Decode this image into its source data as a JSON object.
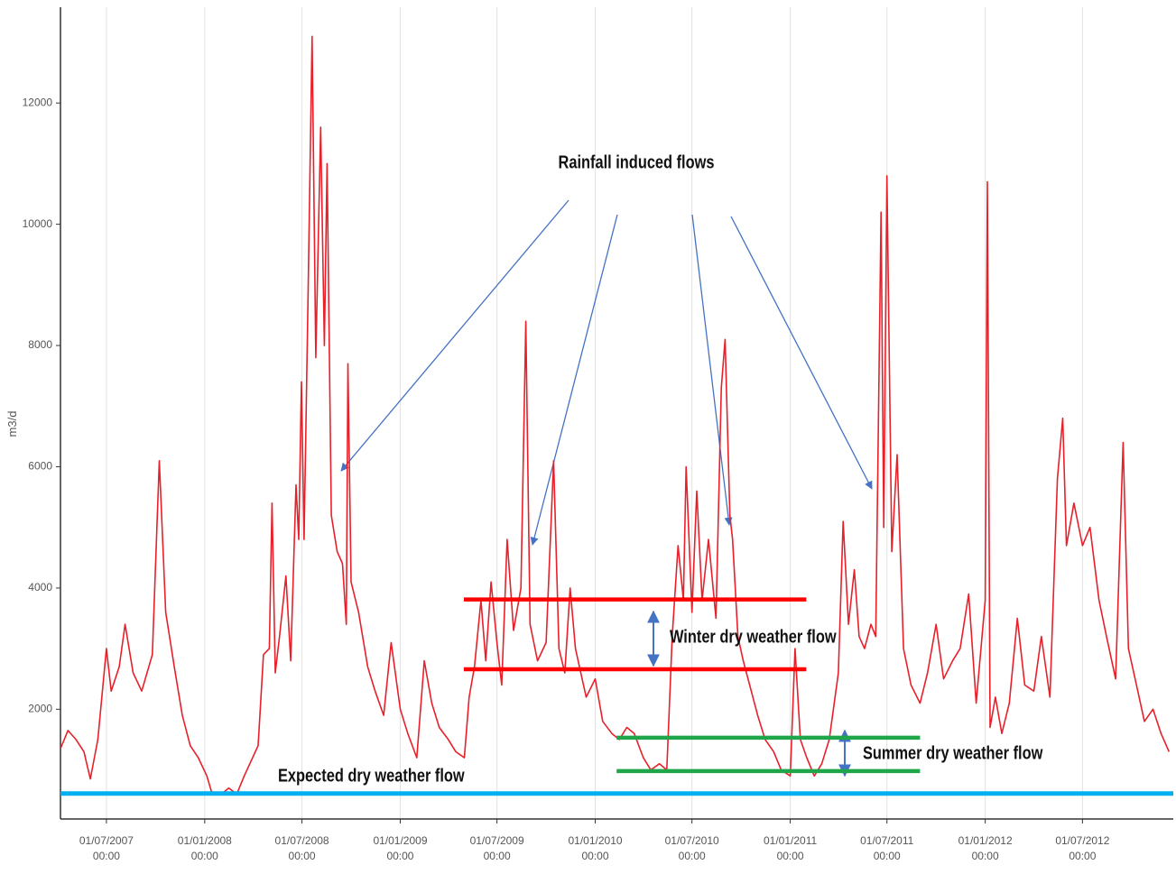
{
  "chart_data": {
    "type": "line",
    "ylabel": "m3/d",
    "annotations": [
      "Rainfall induced flows",
      "Winter dry weather flow",
      "Summer dry weather flow",
      "Expected dry weather flow"
    ],
    "xlim": [
      "06/04/2007",
      "18/12/2012"
    ],
    "ylim": [
      190,
      13580
    ],
    "yticks": [
      2000,
      4000,
      6000,
      8000,
      10000,
      12000
    ],
    "xticks": [
      "01/07/2007 00:00",
      "01/01/2008 00:00",
      "01/07/2008 00:00",
      "01/01/2009 00:00",
      "01/07/2009 00:00",
      "01/01/2010 00:00",
      "01/07/2010 00:00",
      "01/01/2011 00:00",
      "01/07/2011 00:00",
      "01/01/2012 00:00",
      "01/07/2012 00:00"
    ],
    "grid": true,
    "x": [
      "06/04/2007",
      "20/04/2007",
      "05/05/2007",
      "20/05/2007",
      "01/06/2007",
      "15/06/2007",
      "01/07/2007",
      "10/07/2007",
      "25/07/2007",
      "05/08/2007",
      "20/08/2007",
      "05/09/2007",
      "25/09/2007",
      "08/10/2007",
      "20/10/2007",
      "05/11/2007",
      "20/11/2007",
      "05/12/2007",
      "20/12/2007",
      "05/01/2008",
      "15/01/2008",
      "01/02/2008",
      "15/02/2008",
      "01/03/2008",
      "15/03/2008",
      "10/04/2008",
      "20/04/2008",
      "01/05/2008",
      "06/05/2008",
      "12/05/2008",
      "20/05/2008",
      "01/06/2008",
      "10/06/2008",
      "20/06/2008",
      "25/06/2008",
      "30/06/2008",
      "05/07/2008",
      "12/07/2008",
      "20/07/2008",
      "27/07/2008",
      "05/08/2008",
      "12/08/2008",
      "17/08/2008",
      "25/08/2008",
      "05/09/2008",
      "15/09/2008",
      "22/09/2008",
      "25/09/2008",
      "01/10/2008",
      "15/10/2008",
      "01/11/2008",
      "15/11/2008",
      "01/12/2008",
      "15/12/2008",
      "01/01/2009",
      "15/01/2009",
      "01/02/2009",
      "15/02/2009",
      "01/03/2009",
      "15/03/2009",
      "01/04/2009",
      "15/04/2009",
      "01/05/2009",
      "10/05/2009",
      "20/05/2009",
      "01/06/2009",
      "10/06/2009",
      "20/06/2009",
      "01/07/2009",
      "10/07/2009",
      "20/07/2009",
      "01/08/2009",
      "15/08/2009",
      "24/08/2009",
      "01/09/2009",
      "15/09/2009",
      "01/10/2009",
      "15/10/2009",
      "25/10/2009",
      "05/11/2009",
      "15/11/2009",
      "25/11/2009",
      "05/12/2009",
      "15/12/2009",
      "01/01/2010",
      "15/01/2010",
      "01/02/2010",
      "15/02/2010",
      "01/03/2010",
      "15/03/2010",
      "01/04/2010",
      "15/04/2010",
      "01/05/2010",
      "15/05/2010",
      "25/05/2010",
      "05/06/2010",
      "15/06/2010",
      "20/06/2010",
      "01/07/2010",
      "10/07/2010",
      "20/07/2010",
      "01/08/2010",
      "15/08/2010",
      "25/08/2010",
      "01/09/2010",
      "10/09/2010",
      "15/09/2010",
      "25/09/2010",
      "05/10/2010",
      "20/10/2010",
      "01/11/2010",
      "15/11/2010",
      "01/12/2010",
      "15/12/2010",
      "01/01/2011",
      "10/01/2011",
      "20/01/2011",
      "01/02/2011",
      "15/02/2011",
      "01/03/2011",
      "15/03/2011",
      "01/04/2011",
      "10/04/2011",
      "20/04/2011",
      "01/05/2011",
      "10/05/2011",
      "20/05/2011",
      "01/06/2011",
      "10/06/2011",
      "20/06/2011",
      "25/06/2011",
      "01/07/2011",
      "10/07/2011",
      "20/07/2011",
      "01/08/2011",
      "15/08/2011",
      "01/09/2011",
      "15/09/2011",
      "01/10/2011",
      "15/10/2011",
      "01/11/2011",
      "15/11/2011",
      "01/12/2011",
      "15/12/2011",
      "01/01/2012",
      "05/01/2012",
      "10/01/2012",
      "20/01/2012",
      "01/02/2012",
      "15/02/2012",
      "01/03/2012",
      "15/03/2012",
      "01/04/2012",
      "15/04/2012",
      "01/05/2012",
      "15/05/2012",
      "25/05/2012",
      "01/06/2012",
      "15/06/2012",
      "01/07/2012",
      "15/07/2012",
      "01/08/2012",
      "15/08/2012",
      "01/09/2012",
      "15/09/2012",
      "25/09/2012",
      "10/10/2012",
      "25/10/2012",
      "10/11/2012",
      "25/11/2012",
      "10/12/2012"
    ],
    "series": [
      {
        "color": "#e8202a",
        "values": [
          1350,
          1650,
          1500,
          1300,
          850,
          1500,
          3000,
          2300,
          2700,
          3400,
          2600,
          2300,
          2900,
          6100,
          3600,
          2700,
          1900,
          1400,
          1200,
          900,
          600,
          600,
          700,
          600,
          900,
          1400,
          2900,
          3000,
          5400,
          2600,
          3200,
          4200,
          2800,
          5700,
          4800,
          7400,
          4800,
          8600,
          13100,
          7800,
          11600,
          8000,
          11000,
          5200,
          4600,
          4400,
          3400,
          7700,
          4100,
          3600,
          2700,
          2300,
          1900,
          3100,
          2000,
          1600,
          1200,
          2800,
          2100,
          1700,
          1500,
          1300,
          1200,
          2200,
          2700,
          3800,
          2800,
          4100,
          3100,
          2400,
          4800,
          3300,
          4000,
          8400,
          3400,
          2800,
          3100,
          6100,
          3000,
          2600,
          4000,
          3000,
          2600,
          2200,
          2500,
          1800,
          1600,
          1500,
          1700,
          1600,
          1200,
          1000,
          1100,
          1000,
          3200,
          4700,
          3800,
          6000,
          3600,
          5600,
          3800,
          4800,
          3500,
          7300,
          8100,
          5200,
          4800,
          3200,
          2800,
          2300,
          1900,
          1500,
          1300,
          1000,
          900,
          3000,
          1500,
          1200,
          900,
          1100,
          1500,
          2600,
          5100,
          3400,
          4300,
          3200,
          3000,
          3400,
          3200,
          10200,
          5000,
          10800,
          4600,
          6200,
          3000,
          2400,
          2100,
          2600,
          3400,
          2500,
          2800,
          3000,
          3900,
          2100,
          3800,
          10700,
          1700,
          2200,
          1600,
          2100,
          3500,
          2400,
          2300,
          3200,
          2200,
          5800,
          6800,
          4700,
          5400,
          4700,
          5000,
          3800,
          3200,
          2500,
          6400,
          3000,
          2400,
          1800,
          2000,
          1600,
          1300
        ]
      }
    ],
    "reference_lines": [
      {
        "value": 610,
        "color": "#00b0f0"
      },
      {
        "value": 3810,
        "color": "#ff0000",
        "x": [
          "30/04/2009",
          "31/01/2011"
        ]
      },
      {
        "value": 2660,
        "color": "#ff0000",
        "x": [
          "30/04/2009",
          "31/01/2011"
        ]
      },
      {
        "value": 1530,
        "color": "#1fa64a",
        "x": [
          "10/02/2010",
          "01/09/2011"
        ]
      },
      {
        "value": 980,
        "color": "#1fa64a",
        "x": [
          "10/02/2010",
          "01/09/2011"
        ]
      }
    ]
  }
}
